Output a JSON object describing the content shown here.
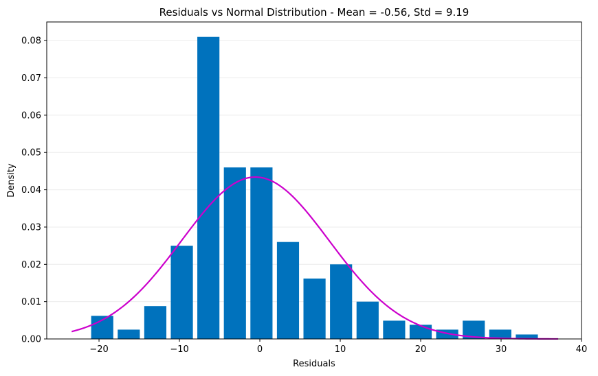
{
  "chart_data": {
    "type": "bar",
    "title": "Residuals vs Normal Distribution - Mean = -0.56, Std = 9.19",
    "xlabel": "Residuals",
    "ylabel": "Density",
    "xlim": [
      -26.5,
      40
    ],
    "ylim": [
      0,
      0.085
    ],
    "xticks": [
      -20,
      -10,
      0,
      10,
      20,
      30,
      40
    ],
    "xtick_labels": [
      "−20",
      "−10",
      "0",
      "10",
      "20",
      "30",
      "40"
    ],
    "yticks": [
      0.0,
      0.01,
      0.02,
      0.03,
      0.04,
      0.05,
      0.06,
      0.07,
      0.08
    ],
    "ytick_labels": [
      "0.00",
      "0.01",
      "0.02",
      "0.03",
      "0.04",
      "0.05",
      "0.06",
      "0.07",
      "0.08"
    ],
    "grid": "horizontal",
    "bar_color": "#0072bd",
    "curve_color": "#cc00cc",
    "bins": [
      {
        "center": -19.6,
        "width": 2.75,
        "value": 0.0062
      },
      {
        "center": -16.3,
        "width": 2.75,
        "value": 0.0025
      },
      {
        "center": -13.0,
        "width": 2.75,
        "value": 0.0088
      },
      {
        "center": -9.7,
        "width": 2.75,
        "value": 0.025
      },
      {
        "center": -6.4,
        "width": 2.75,
        "value": 0.081
      },
      {
        "center": -3.1,
        "width": 2.75,
        "value": 0.046
      },
      {
        "center": 0.2,
        "width": 2.75,
        "value": 0.046
      },
      {
        "center": 3.5,
        "width": 2.75,
        "value": 0.026
      },
      {
        "center": 6.8,
        "width": 2.75,
        "value": 0.0162
      },
      {
        "center": 10.1,
        "width": 2.75,
        "value": 0.02
      },
      {
        "center": 13.4,
        "width": 2.75,
        "value": 0.01
      },
      {
        "center": 16.7,
        "width": 2.75,
        "value": 0.0049
      },
      {
        "center": 20.0,
        "width": 2.75,
        "value": 0.0038
      },
      {
        "center": 23.3,
        "width": 2.75,
        "value": 0.0025
      },
      {
        "center": 26.6,
        "width": 2.75,
        "value": 0.0049
      },
      {
        "center": 29.9,
        "width": 2.75,
        "value": 0.0025
      },
      {
        "center": 33.2,
        "width": 2.75,
        "value": 0.0012
      }
    ],
    "normal_curve": {
      "mean": -0.56,
      "std": 9.19,
      "x_range": [
        -23.4,
        37.1
      ]
    }
  }
}
